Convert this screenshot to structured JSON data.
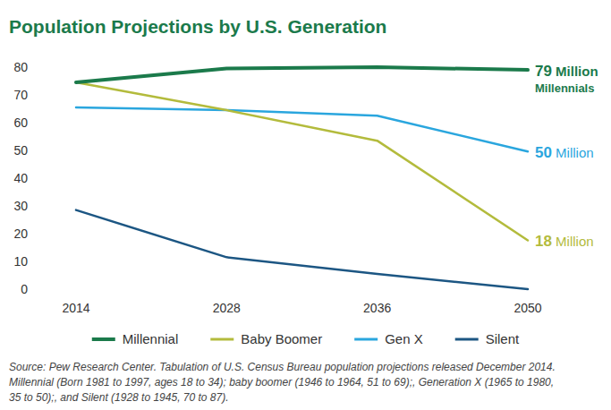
{
  "chart_data": {
    "type": "line",
    "title": "Population Projections by U.S. Generation",
    "categories": [
      "2014",
      "2028",
      "2036",
      "2050"
    ],
    "series": [
      {
        "name": "Millennial",
        "color": "#1b7a4b",
        "values": [
          74.5,
          79.5,
          80,
          79
        ]
      },
      {
        "name": "Baby Boomer",
        "color": "#b3bb3c",
        "values": [
          74.5,
          64.5,
          53.5,
          17.6
        ]
      },
      {
        "name": "Gen X",
        "color": "#2aa6de",
        "values": [
          65.5,
          64.5,
          62.5,
          49.6
        ]
      },
      {
        "name": "Silent",
        "color": "#1c5683",
        "values": [
          28.5,
          11.5,
          5.5,
          0
        ]
      }
    ],
    "ylim": [
      0,
      80
    ],
    "yticks": [
      0,
      10,
      20,
      30,
      40,
      50,
      60,
      70,
      80
    ],
    "grid": false,
    "legend": "bottom",
    "annotations": [
      {
        "series": 0,
        "text": [
          "79 Million",
          "Millennials"
        ]
      },
      {
        "series": 2,
        "text": [
          "50 Million"
        ]
      },
      {
        "series": 1,
        "text": [
          "18 Million"
        ]
      }
    ],
    "source": [
      "Source: Pew Research Center. Tabulation of U.S. Census Bureau population projections released December 2014.",
      "Millennial (Born 1981 to 1997, ages 18 to 34); baby boomer (1946 to 1964, 51 to 69);, Generation X (1965 to 1980,",
      "35 to 50);, and Silent (1928 to 1945, 70 to 87)."
    ]
  }
}
